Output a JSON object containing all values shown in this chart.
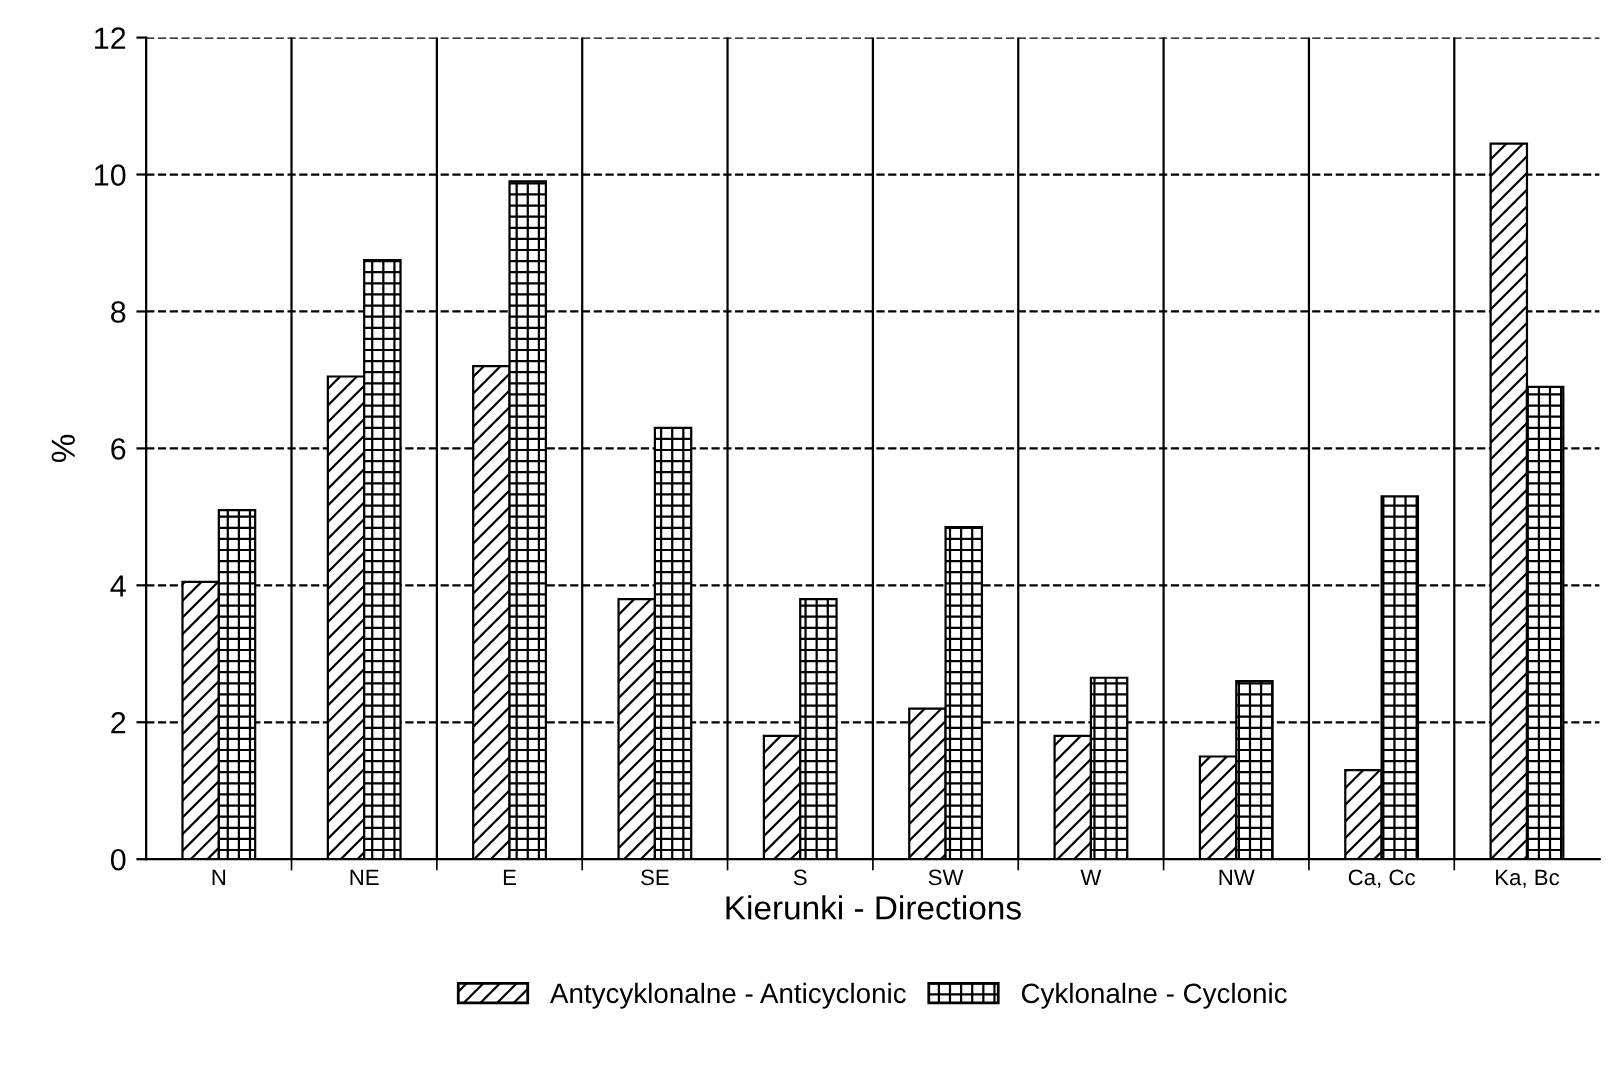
{
  "chart_data": {
    "type": "bar",
    "xlabel": "Kierunki - Directions",
    "ylabel": "%",
    "categories": [
      "N",
      "NE",
      "E",
      "SE",
      "S",
      "SW",
      "W",
      "NW",
      "Ca, Cc",
      "Ka, Bc"
    ],
    "series": [
      {
        "name": "Antycyklonalne - Anticyclonic",
        "color": "#000000",
        "values": [
          4.05,
          7.05,
          7.2,
          3.8,
          1.8,
          2.2,
          1.8,
          1.5,
          1.3,
          10.45
        ]
      },
      {
        "name": "Cyklonalne - Cyclonic",
        "color": "#000000",
        "values": [
          5.1,
          8.75,
          9.9,
          6.3,
          3.8,
          4.85,
          2.65,
          2.6,
          5.3,
          6.9
        ]
      }
    ],
    "ylim": [
      0,
      12
    ],
    "yticks": [
      0,
      2,
      4,
      6,
      8,
      10,
      12
    ],
    "grid": true,
    "legend": "bottom"
  }
}
